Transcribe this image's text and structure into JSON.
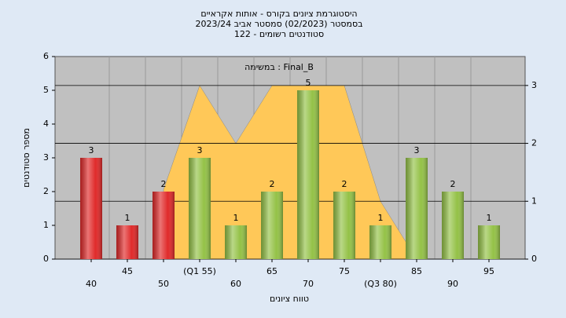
{
  "chart_data": {
    "type": "bar",
    "title_lines": [
      "היסטוגרמת ציונים בקורס - אותות אקראיים",
      "בסמסטר (02/2023) סמסטר אביב 2023/24",
      "סטודנטים רשומים - 122"
    ],
    "annotation": "Final_B : במשימה",
    "x_label": "טווח ציונים",
    "y_label": "מספר סטודנטים",
    "categories": [
      "40",
      "45",
      "50",
      "(Q1 55)",
      "60",
      "65",
      "70",
      "75",
      "(Q3 80)",
      "85",
      "90",
      "95"
    ],
    "series": [
      {
        "values": [
          3,
          1,
          2,
          3,
          1,
          2,
          5,
          2,
          1,
          3,
          2,
          1
        ],
        "colors": [
          "#e02a2a",
          "#e02a2a",
          "#e02a2a",
          "#94c247",
          "#94c247",
          "#94c247",
          "#94c247",
          "#94c247",
          "#94c247",
          "#94c247",
          "#94c247",
          "#94c247"
        ]
      },
      {
        "type": "area",
        "axis": "y2",
        "color": "#ffc858",
        "values": [
          null,
          null,
          1.2,
          3,
          2,
          3,
          3,
          3,
          1,
          0,
          null,
          null
        ]
      }
    ],
    "ylim": [
      0,
      6
    ],
    "yticks": [
      0,
      1,
      2,
      3,
      4,
      5,
      6
    ],
    "y2lim": [
      0,
      3.5
    ],
    "y2ticks": [
      0,
      1,
      2,
      3
    ],
    "grid": true
  }
}
